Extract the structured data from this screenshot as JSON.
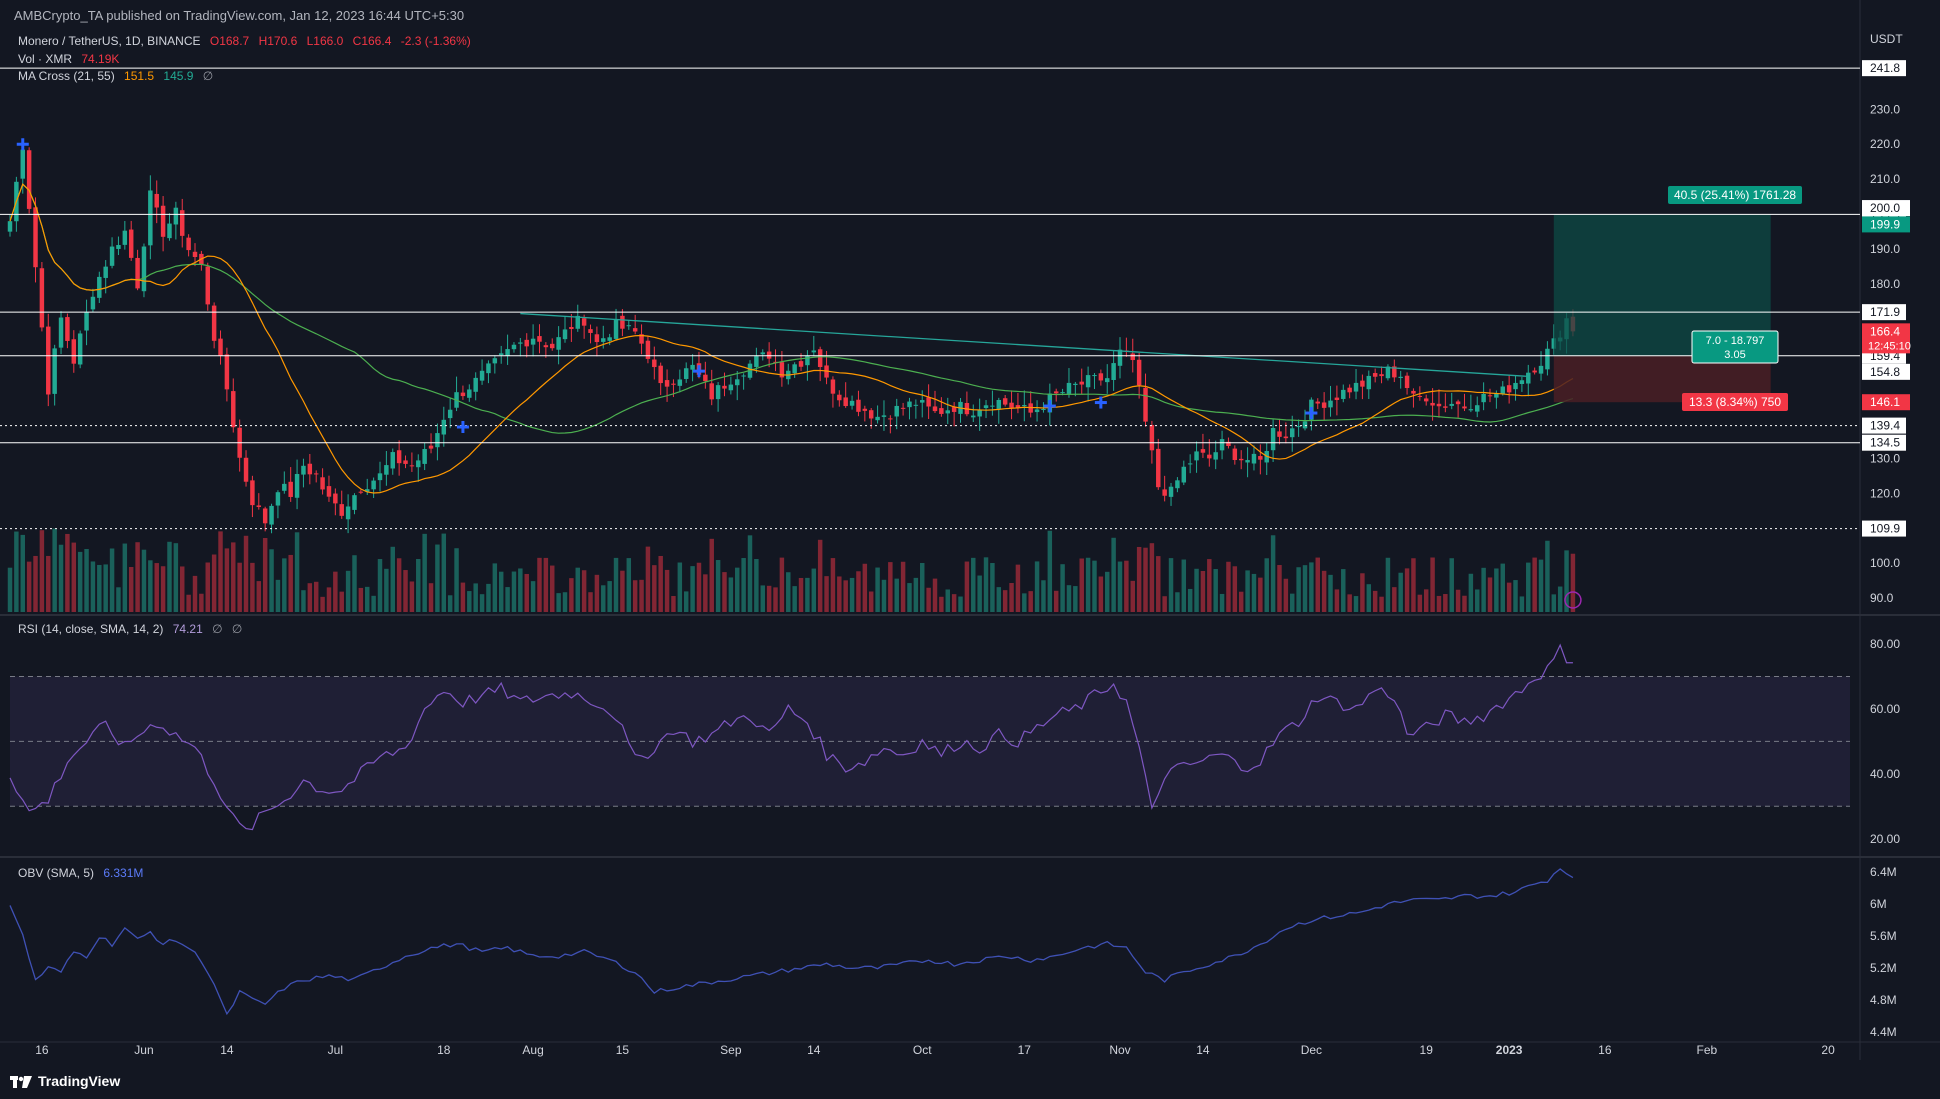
{
  "header": {
    "publisher": "AMBCrypto_TA published on TradingView.com, Jan 12, 2023 16:44 UTC+5:30"
  },
  "legend": {
    "symbol": "Monero / TetherUS, 1D, BINANCE",
    "ohlc": [
      "O168.7",
      "H170.6",
      "L166.0",
      "C166.4",
      "-2.3 (-1.36%)"
    ],
    "vol_label": "Vol · XMR",
    "vol_value": "74.19K",
    "ma_label": "MA Cross (21, 55)",
    "ma_fast": "151.5",
    "ma_slow": "145.9",
    "rsi_label": "RSI (14, close, SMA, 14, 2)",
    "rsi_value": "74.21",
    "obv_label": "OBV (SMA, 5)",
    "obv_value": "6.331M",
    "empty_sym": "∅"
  },
  "footer": {
    "brand": "TradingView"
  },
  "colors": {
    "bg": "#131722",
    "up": "#22ab94",
    "down": "#f23645",
    "ma_fast": "#ff9800",
    "ma_slow": "#4caf50",
    "rsi": "#7e57c2",
    "obv": "#3f51b5",
    "trend": "#26a69a",
    "grid": "#1e222d",
    "text": "#d1d4dc"
  },
  "chart_data": [
    {
      "type": "candlestick",
      "currency": "USDT",
      "ylim": [
        86,
        247
      ],
      "yticks": [
        90,
        100,
        110,
        120,
        130,
        140,
        150,
        160,
        170,
        180,
        190,
        200,
        210,
        220,
        230,
        240
      ],
      "ytick_labels": [
        "90.0",
        "100.0",
        "",
        "120.0",
        "130.0",
        "",
        "",
        "",
        "",
        "180.0",
        "190.0",
        "",
        "210.0",
        "220.0",
        "230.0",
        ""
      ],
      "xticks": [
        {
          "label": "16",
          "day": 5
        },
        {
          "label": "Jun",
          "day": 21
        },
        {
          "label": "14",
          "day": 34
        },
        {
          "label": "Jul",
          "day": 51
        },
        {
          "label": "18",
          "day": 68
        },
        {
          "label": "Aug",
          "day": 82
        },
        {
          "label": "15",
          "day": 96
        },
        {
          "label": "Sep",
          "day": 113
        },
        {
          "label": "14",
          "day": 126
        },
        {
          "label": "Oct",
          "day": 143
        },
        {
          "label": "17",
          "day": 159
        },
        {
          "label": "Nov",
          "day": 174
        },
        {
          "label": "14",
          "day": 187
        },
        {
          "label": "Dec",
          "day": 204
        },
        {
          "label": "19",
          "day": 222
        },
        {
          "label": "2023",
          "day": 235
        },
        {
          "label": "16",
          "day": 250
        },
        {
          "label": "Feb",
          "day": 266
        },
        {
          "label": "20",
          "day": 285
        }
      ],
      "days_total": 290,
      "last_day": 245,
      "price_anchors": [
        [
          0,
          198
        ],
        [
          2,
          220
        ],
        [
          4,
          185
        ],
        [
          6,
          150
        ],
        [
          8,
          170
        ],
        [
          10,
          158
        ],
        [
          13,
          178
        ],
        [
          16,
          190
        ],
        [
          18,
          195
        ],
        [
          20,
          180
        ],
        [
          22,
          205
        ],
        [
          24,
          195
        ],
        [
          26,
          200
        ],
        [
          28,
          190
        ],
        [
          30,
          185
        ],
        [
          32,
          165
        ],
        [
          34,
          150
        ],
        [
          36,
          130
        ],
        [
          38,
          118
        ],
        [
          40,
          112
        ],
        [
          42,
          122
        ],
        [
          44,
          120
        ],
        [
          46,
          128
        ],
        [
          48,
          125
        ],
        [
          50,
          118
        ],
        [
          52,
          115
        ],
        [
          55,
          122
        ],
        [
          58,
          125
        ],
        [
          60,
          130
        ],
        [
          63,
          128
        ],
        [
          66,
          133
        ],
        [
          68,
          142
        ],
        [
          70,
          148
        ],
        [
          73,
          152
        ],
        [
          76,
          157
        ],
        [
          79,
          162
        ],
        [
          82,
          165
        ],
        [
          85,
          162
        ],
        [
          88,
          168
        ],
        [
          90,
          170
        ],
        [
          92,
          163
        ],
        [
          95,
          168
        ],
        [
          98,
          166
        ],
        [
          100,
          160
        ],
        [
          102,
          150
        ],
        [
          104,
          153
        ],
        [
          107,
          156
        ],
        [
          110,
          148
        ],
        [
          113,
          153
        ],
        [
          116,
          157
        ],
        [
          119,
          160
        ],
        [
          121,
          155
        ],
        [
          124,
          158
        ],
        [
          126,
          162
        ],
        [
          128,
          152
        ],
        [
          130,
          148
        ],
        [
          133,
          145
        ],
        [
          136,
          142
        ],
        [
          139,
          144
        ],
        [
          142,
          146
        ],
        [
          145,
          143
        ],
        [
          148,
          145
        ],
        [
          151,
          144
        ],
        [
          154,
          147
        ],
        [
          157,
          145
        ],
        [
          160,
          143
        ],
        [
          163,
          147
        ],
        [
          166,
          150
        ],
        [
          169,
          152
        ],
        [
          172,
          153
        ],
        [
          174,
          160
        ],
        [
          176,
          158
        ],
        [
          178,
          140
        ],
        [
          180,
          122
        ],
        [
          182,
          120
        ],
        [
          184,
          127
        ],
        [
          186,
          131
        ],
        [
          188,
          130
        ],
        [
          190,
          134
        ],
        [
          193,
          130
        ],
        [
          196,
          129
        ],
        [
          198,
          138
        ],
        [
          200,
          137
        ],
        [
          202,
          140
        ],
        [
          204,
          145
        ],
        [
          207,
          147
        ],
        [
          210,
          150
        ],
        [
          213,
          152
        ],
        [
          216,
          155
        ],
        [
          218,
          154
        ],
        [
          220,
          147
        ],
        [
          222,
          148
        ],
        [
          224,
          145
        ],
        [
          226,
          146
        ],
        [
          228,
          145
        ],
        [
          230,
          147
        ],
        [
          232,
          148
        ],
        [
          234,
          149
        ],
        [
          236,
          152
        ],
        [
          238,
          155
        ],
        [
          240,
          158
        ],
        [
          242,
          163
        ],
        [
          244,
          170
        ],
        [
          245,
          166.4
        ]
      ],
      "hlines": [
        {
          "value": 241.8,
          "label": "241.8",
          "style": "solid"
        },
        {
          "value": 199.9,
          "label": "199.9",
          "style": "solid"
        },
        {
          "value": 171.9,
          "label": "171.9",
          "style": "solid"
        },
        {
          "value": 159.4,
          "label": "159.4",
          "style": "solid"
        },
        {
          "value": 139.4,
          "label": "139.4",
          "style": "dotted"
        },
        {
          "value": 134.5,
          "label": "134.5",
          "style": "solid"
        },
        {
          "value": 109.9,
          "label": "109.9",
          "style": "dotted"
        }
      ],
      "price_tags": [
        {
          "value": 200.0,
          "label": "200.0",
          "kind": "white"
        },
        {
          "value": 199.9,
          "label": "199.9",
          "kind": "teal"
        },
        {
          "value": 166.4,
          "label": "166.4",
          "kind": "red"
        },
        {
          "value": 154.8,
          "label": "154.8",
          "kind": "white"
        },
        {
          "value": 146.1,
          "label": "146.1",
          "kind": "red"
        }
      ],
      "countdown": "12:45:10",
      "position": {
        "entry": 159.4,
        "target": 199.9,
        "stop": 146.1,
        "start_day": 242,
        "end_day": 276,
        "target_label": "40.5 (25.41%) 1761.28",
        "stop_label": "13.3 (8.34%) 750",
        "ratio_line1": "7.0 - 18.797",
        "ratio_line2": "3.05"
      },
      "trendline": {
        "start_day": 80,
        "start_value": 171.5,
        "end_day": 238,
        "end_value": 153.5
      },
      "cross_markers": [
        {
          "day": 2,
          "value": 220
        },
        {
          "day": 71,
          "value": 139
        },
        {
          "day": 108,
          "value": 155
        },
        {
          "day": 163,
          "value": 145
        },
        {
          "day": 171,
          "value": 146
        },
        {
          "day": 204,
          "value": 143
        }
      ]
    },
    {
      "type": "line",
      "name": "RSI",
      "ylim": [
        15,
        88
      ],
      "yticks": [
        20,
        40,
        60,
        80
      ],
      "ytick_labels": [
        "20.00",
        "40.00",
        "60.00",
        "80.00"
      ],
      "band": [
        30,
        70
      ],
      "mid": 50,
      "anchors": [
        [
          0,
          40
        ],
        [
          3,
          28
        ],
        [
          6,
          32
        ],
        [
          9,
          44
        ],
        [
          12,
          50
        ],
        [
          15,
          55
        ],
        [
          18,
          48
        ],
        [
          20,
          52
        ],
        [
          23,
          56
        ],
        [
          26,
          52
        ],
        [
          29,
          48
        ],
        [
          32,
          38
        ],
        [
          35,
          26
        ],
        [
          37,
          22
        ],
        [
          40,
          28
        ],
        [
          43,
          32
        ],
        [
          46,
          38
        ],
        [
          49,
          35
        ],
        [
          52,
          35
        ],
        [
          55,
          40
        ],
        [
          58,
          45
        ],
        [
          62,
          48
        ],
        [
          65,
          60
        ],
        [
          68,
          66
        ],
        [
          71,
          62
        ],
        [
          74,
          64
        ],
        [
          77,
          66
        ],
        [
          80,
          62
        ],
        [
          84,
          64
        ],
        [
          88,
          65
        ],
        [
          92,
          62
        ],
        [
          95,
          58
        ],
        [
          98,
          44
        ],
        [
          101,
          48
        ],
        [
          104,
          54
        ],
        [
          107,
          50
        ],
        [
          110,
          52
        ],
        [
          113,
          56
        ],
        [
          116,
          58
        ],
        [
          119,
          52
        ],
        [
          122,
          60
        ],
        [
          125,
          56
        ],
        [
          128,
          46
        ],
        [
          131,
          42
        ],
        [
          134,
          44
        ],
        [
          137,
          48
        ],
        [
          140,
          46
        ],
        [
          143,
          50
        ],
        [
          146,
          46
        ],
        [
          149,
          50
        ],
        [
          152,
          48
        ],
        [
          155,
          52
        ],
        [
          158,
          50
        ],
        [
          161,
          54
        ],
        [
          164,
          58
        ],
        [
          167,
          60
        ],
        [
          170,
          64
        ],
        [
          173,
          68
        ],
        [
          175,
          62
        ],
        [
          177,
          48
        ],
        [
          179,
          28
        ],
        [
          181,
          40
        ],
        [
          184,
          42
        ],
        [
          187,
          44
        ],
        [
          190,
          46
        ],
        [
          193,
          42
        ],
        [
          196,
          44
        ],
        [
          199,
          52
        ],
        [
          202,
          56
        ],
        [
          205,
          64
        ],
        [
          208,
          62
        ],
        [
          211,
          60
        ],
        [
          214,
          66
        ],
        [
          217,
          64
        ],
        [
          219,
          52
        ],
        [
          222,
          54
        ],
        [
          225,
          58
        ],
        [
          228,
          56
        ],
        [
          231,
          58
        ],
        [
          234,
          62
        ],
        [
          237,
          66
        ],
        [
          239,
          70
        ],
        [
          241,
          72
        ],
        [
          243,
          78
        ],
        [
          245,
          74.21
        ]
      ]
    },
    {
      "type": "line",
      "name": "OBV",
      "ylim": [
        4.3,
        6.55
      ],
      "yticks": [
        4.4,
        4.8,
        5.2,
        5.6,
        6.0,
        6.4
      ],
      "ytick_labels": [
        "4.4M",
        "4.8M",
        "5.2M",
        "5.6M",
        "6M",
        "6.4M"
      ],
      "anchors": [
        [
          0,
          6.0
        ],
        [
          2,
          5.6
        ],
        [
          4,
          5.05
        ],
        [
          6,
          5.2
        ],
        [
          8,
          5.15
        ],
        [
          10,
          5.4
        ],
        [
          12,
          5.35
        ],
        [
          14,
          5.6
        ],
        [
          16,
          5.5
        ],
        [
          18,
          5.7
        ],
        [
          20,
          5.55
        ],
        [
          22,
          5.65
        ],
        [
          24,
          5.5
        ],
        [
          26,
          5.55
        ],
        [
          28,
          5.45
        ],
        [
          30,
          5.3
        ],
        [
          32,
          5.0
        ],
        [
          34,
          4.6
        ],
        [
          36,
          4.9
        ],
        [
          38,
          4.8
        ],
        [
          40,
          4.75
        ],
        [
          43,
          4.95
        ],
        [
          46,
          5.05
        ],
        [
          50,
          5.1
        ],
        [
          54,
          5.05
        ],
        [
          58,
          5.2
        ],
        [
          62,
          5.35
        ],
        [
          66,
          5.45
        ],
        [
          70,
          5.5
        ],
        [
          74,
          5.4
        ],
        [
          78,
          5.45
        ],
        [
          82,
          5.35
        ],
        [
          86,
          5.35
        ],
        [
          90,
          5.4
        ],
        [
          94,
          5.3
        ],
        [
          98,
          5.15
        ],
        [
          101,
          4.9
        ],
        [
          104,
          4.95
        ],
        [
          108,
          5.0
        ],
        [
          112,
          5.05
        ],
        [
          116,
          5.1
        ],
        [
          120,
          5.15
        ],
        [
          124,
          5.2
        ],
        [
          128,
          5.25
        ],
        [
          132,
          5.2
        ],
        [
          136,
          5.2
        ],
        [
          140,
          5.25
        ],
        [
          144,
          5.3
        ],
        [
          148,
          5.25
        ],
        [
          152,
          5.3
        ],
        [
          156,
          5.35
        ],
        [
          160,
          5.3
        ],
        [
          164,
          5.35
        ],
        [
          168,
          5.45
        ],
        [
          172,
          5.5
        ],
        [
          175,
          5.45
        ],
        [
          178,
          5.15
        ],
        [
          181,
          5.05
        ],
        [
          184,
          5.15
        ],
        [
          188,
          5.25
        ],
        [
          192,
          5.35
        ],
        [
          196,
          5.5
        ],
        [
          200,
          5.7
        ],
        [
          204,
          5.8
        ],
        [
          208,
          5.85
        ],
        [
          212,
          5.9
        ],
        [
          216,
          6.0
        ],
        [
          220,
          6.05
        ],
        [
          224,
          6.05
        ],
        [
          228,
          6.1
        ],
        [
          232,
          6.1
        ],
        [
          236,
          6.15
        ],
        [
          239,
          6.25
        ],
        [
          241,
          6.3
        ],
        [
          243,
          6.45
        ],
        [
          245,
          6.331
        ]
      ]
    }
  ]
}
